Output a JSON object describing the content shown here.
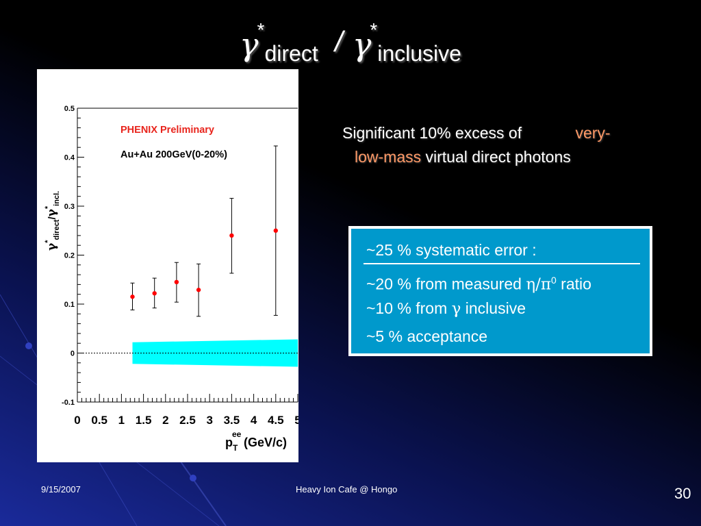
{
  "slide": {
    "title": {
      "numerator_symbol": "γ",
      "numerator_star": "*",
      "numerator_sub": "direct",
      "slash": "/",
      "denominator_symbol": "γ",
      "denominator_star": "*",
      "denominator_sub": "inclusive"
    },
    "statement": {
      "part1": "Significant 10% excess of",
      "highlight1": "very-",
      "highlight2": "low-mass",
      "part2": "virtual direct photons",
      "highlight_color": "#ff9966"
    },
    "error_box": {
      "header": "~25 % systematic error :",
      "row2_prefix": "~20 % from measured ",
      "row2_greek": "η/π",
      "row2_sup": "0",
      "row2_suffix": " ratio",
      "row3_prefix": "~10 % from ",
      "row3_greek": "γ",
      "row3_suffix": " inclusive",
      "row4": "~5 % acceptance",
      "fill_color": "#0099cc"
    },
    "footer": {
      "date": "9/15/2007",
      "center": "Heavy Ion Cafe @ Hongo",
      "page": "30"
    }
  },
  "chart_data": {
    "type": "scatter",
    "annotation_title": "PHENIX Preliminary",
    "annotation_system": "Au+Au 200GeV(0-20%)",
    "ylabel": "γ*direct/γ*incl.",
    "xlabel": "pTee(GeV/c)",
    "xlim": [
      0,
      5
    ],
    "ylim": [
      -0.1,
      0.5
    ],
    "x_ticks": [
      "0",
      "0.5",
      "1",
      "1.5",
      "2",
      "2.5",
      "3",
      "3.5",
      "4",
      "4.5",
      "5"
    ],
    "y_ticks": [
      "-0.1",
      "0",
      "0.1",
      "0.2",
      "0.3",
      "0.4",
      "0.5"
    ],
    "series": [
      {
        "x": [
          1.25,
          1.75,
          2.25,
          2.75,
          3.5,
          4.5
        ],
        "y": [
          0.115,
          0.122,
          0.145,
          0.129,
          0.24,
          0.25
        ],
        "err_low": [
          0.088,
          0.092,
          0.104,
          0.075,
          0.163,
          0.077
        ],
        "err_high": [
          0.143,
          0.153,
          0.185,
          0.182,
          0.316,
          0.423
        ]
      }
    ],
    "systematic_band": {
      "x": [
        1.25,
        5.0
      ],
      "y_low": [
        -0.022,
        -0.028
      ],
      "y_high": [
        0.022,
        0.028
      ],
      "color": "#00ffff"
    },
    "marker_color": "#ff0000",
    "zero_line": 0
  }
}
